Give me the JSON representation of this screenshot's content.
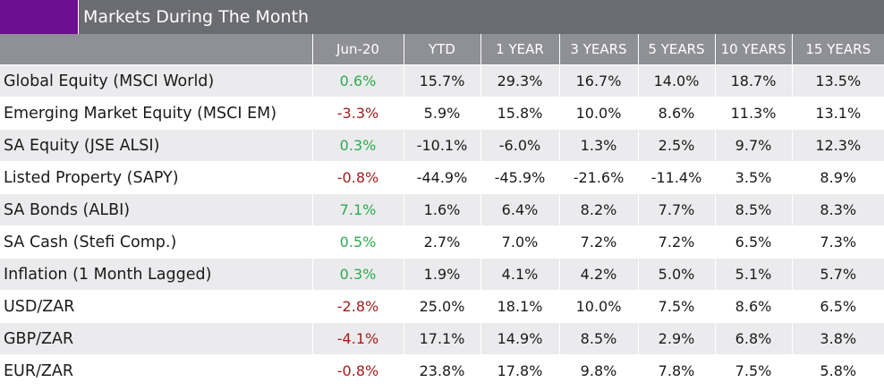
{
  "title": "Markets During The Month",
  "colors": {
    "accent": "#6a0f8e",
    "title_bg": "#6b6b72",
    "header_bg": "#8f8f96",
    "positive": "#2eaa4f",
    "negative": "#a21d1d"
  },
  "headers": [
    "Jun-20",
    "YTD",
    "1 YEAR",
    "3 YEARS",
    "5 YEARS",
    "10 YEARS",
    "15 YEARS"
  ],
  "rows": [
    {
      "name": "Global Equity (MSCI World)",
      "month": "0.6%",
      "month_dir": "pos",
      "values": [
        "15.7%",
        "29.3%",
        "16.7%",
        "14.0%",
        "18.7%",
        "13.5%"
      ]
    },
    {
      "name": "Emerging Market Equity (MSCI EM)",
      "month": "-3.3%",
      "month_dir": "neg",
      "values": [
        "5.9%",
        "15.8%",
        "10.0%",
        "8.6%",
        "11.3%",
        "13.1%"
      ]
    },
    {
      "name": "SA Equity (JSE ALSI)",
      "month": "0.3%",
      "month_dir": "pos",
      "values": [
        "-10.1%",
        "-6.0%",
        "1.3%",
        "2.5%",
        "9.7%",
        "12.3%"
      ]
    },
    {
      "name": "Listed Property (SAPY)",
      "month": "-0.8%",
      "month_dir": "neg",
      "values": [
        "-44.9%",
        "-45.9%",
        "-21.6%",
        "-11.4%",
        "3.5%",
        "8.9%"
      ]
    },
    {
      "name": "SA Bonds (ALBI)",
      "month": "7.1%",
      "month_dir": "pos",
      "values": [
        "1.6%",
        "6.4%",
        "8.2%",
        "7.7%",
        "8.5%",
        "8.3%"
      ]
    },
    {
      "name": "SA Cash (Stefi Comp.)",
      "month": "0.5%",
      "month_dir": "pos",
      "values": [
        "2.7%",
        "7.0%",
        "7.2%",
        "7.2%",
        "6.5%",
        "7.3%"
      ]
    },
    {
      "name": "Inflation (1 Month Lagged)",
      "month": "0.3%",
      "month_dir": "pos",
      "values": [
        "1.9%",
        "4.1%",
        "4.2%",
        "5.0%",
        "5.1%",
        "5.7%"
      ]
    },
    {
      "name": "USD/ZAR",
      "month": "-2.8%",
      "month_dir": "neg",
      "values": [
        "25.0%",
        "18.1%",
        "10.0%",
        "7.5%",
        "8.6%",
        "6.5%"
      ]
    },
    {
      "name": "GBP/ZAR",
      "month": "-4.1%",
      "month_dir": "neg",
      "values": [
        "17.1%",
        "14.9%",
        "8.5%",
        "2.9%",
        "6.8%",
        "3.8%"
      ]
    },
    {
      "name": "EUR/ZAR",
      "month": "-0.8%",
      "month_dir": "neg",
      "values": [
        "23.8%",
        "17.8%",
        "9.8%",
        "7.8%",
        "7.5%",
        "5.8%"
      ]
    }
  ]
}
